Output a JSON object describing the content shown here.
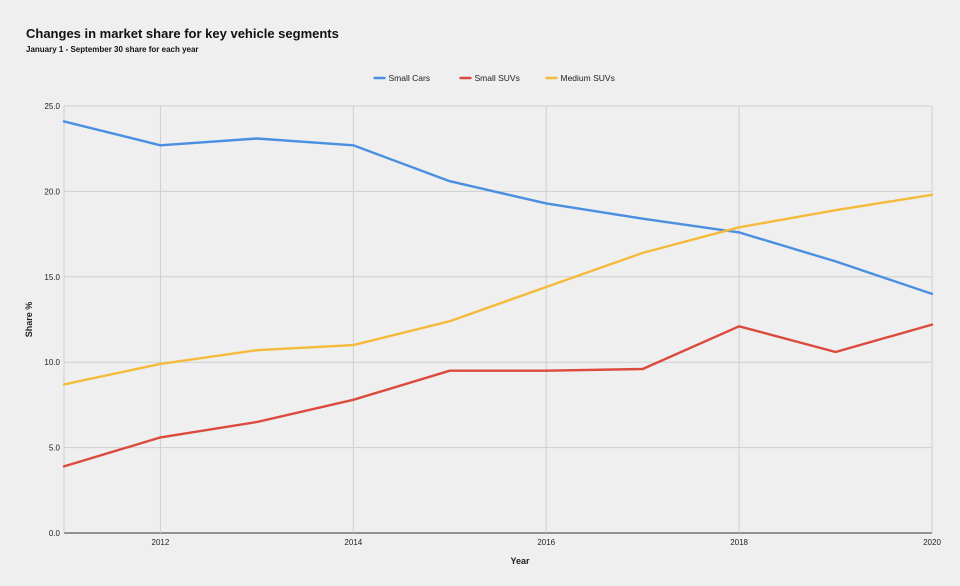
{
  "chart_data": {
    "type": "line",
    "title": "Changes in market share for key vehicle segments",
    "subtitle": "January 1 - September 30 share for each year",
    "xlabel": "Year",
    "ylabel": "Share %",
    "x": [
      2011,
      2012,
      2013,
      2014,
      2015,
      2016,
      2017,
      2018,
      2019,
      2020
    ],
    "xlim": [
      2011,
      2020
    ],
    "ylim": [
      0,
      25
    ],
    "xticks": [
      2012,
      2014,
      2016,
      2018,
      2020
    ],
    "xtick_labels": [
      "2012",
      "2014",
      "2016",
      "2018",
      "2020"
    ],
    "yticks": [
      0,
      5,
      10,
      15,
      20,
      25
    ],
    "ytick_labels": [
      "0.0",
      "5.0",
      "10.0",
      "15.0",
      "20.0",
      "25.0"
    ],
    "grid": true,
    "legend_position": "top-center",
    "series": [
      {
        "name": "Small Cars",
        "color": "#4a8fe0",
        "values": [
          24.1,
          22.7,
          23.1,
          22.7,
          20.6,
          19.3,
          18.4,
          17.6,
          15.9,
          14.0
        ]
      },
      {
        "name": "Small SUVs",
        "color": "#db4a3c",
        "values": [
          3.9,
          5.6,
          6.5,
          7.8,
          9.5,
          9.5,
          9.6,
          12.1,
          10.6,
          12.2
        ]
      },
      {
        "name": "Medium SUVs",
        "color": "#f5ba3c",
        "values": [
          8.7,
          9.9,
          10.7,
          11.0,
          12.4,
          14.4,
          16.4,
          17.9,
          18.9,
          19.8
        ]
      }
    ]
  }
}
